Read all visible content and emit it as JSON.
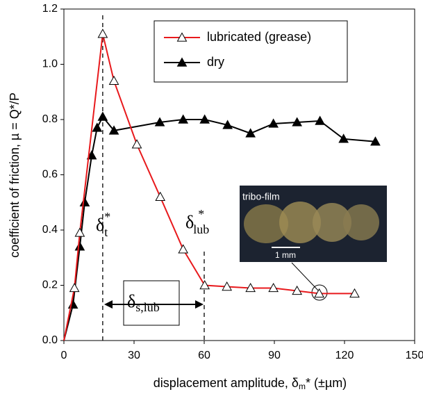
{
  "chart_data": {
    "type": "line",
    "x_label": {
      "text": "displacement amplitude, δ",
      "sub": "m",
      "after": "* (±µm)"
    },
    "y_label": "coefficient of friction, µ = Q*/P",
    "xlim": [
      0,
      150
    ],
    "xticks": [
      0,
      30,
      60,
      90,
      120,
      150
    ],
    "ylim": [
      0,
      1.2
    ],
    "yticks": [
      {
        "value": 0,
        "label": "0.0"
      },
      0.2,
      0.4,
      0.6,
      0.8,
      {
        "value": 1,
        "label": "1.0"
      },
      1.2
    ],
    "legend": "upper right",
    "series": [
      {
        "name": "lubricated (grease)",
        "color": "#e8191c",
        "marker": "open-triangle",
        "x": [
          0,
          4.5,
          6.8,
          16.6,
          21.4,
          31.2,
          41.2,
          51,
          60.2,
          69.7,
          79.8,
          89.6,
          99.7,
          109.2,
          124.3
        ],
        "values": [
          0,
          0.19,
          0.39,
          1.11,
          0.94,
          0.71,
          0.52,
          0.33,
          0.2,
          0.195,
          0.19,
          0.19,
          0.18,
          0.17,
          0.17
        ]
      },
      {
        "name": "dry",
        "color": "#000000",
        "marker": "filled-triangle",
        "x": [
          0,
          3.9,
          6.8,
          8.9,
          11.9,
          14.2,
          16.6,
          21.4,
          41,
          51,
          60.2,
          70,
          79.8,
          89.6,
          99.7,
          109.5,
          119.6,
          133.2
        ],
        "values": [
          0,
          0.13,
          0.34,
          0.5,
          0.67,
          0.77,
          0.81,
          0.76,
          0.79,
          0.8,
          0.8,
          0.78,
          0.75,
          0.785,
          0.79,
          0.795,
          0.73,
          0.72
        ]
      }
    ],
    "reference_lines": [
      16.6,
      60
    ],
    "annotations": {
      "delta_t": {
        "base": "δ",
        "sub": "t",
        "sup": "*"
      },
      "delta_lub": {
        "base": "δ",
        "sub": "lub",
        "sup": "*"
      },
      "delta_s_lub": {
        "base": "δ",
        "sub": "s,lub"
      }
    },
    "inset": {
      "title": "tribo-film",
      "scale_bar": "1 mm"
    }
  }
}
